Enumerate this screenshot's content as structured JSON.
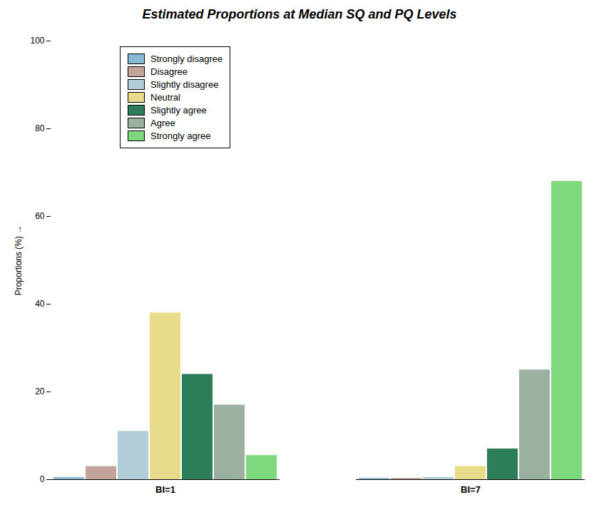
{
  "chart_data": {
    "type": "bar",
    "title": "Estimated Proportions at Median SQ and PQ Levels",
    "ylabel": "Proportions (%)",
    "categories": [
      "BI=1",
      "BI=7"
    ],
    "series": [
      {
        "name": "Strongly disagree",
        "color": "#87b8d4",
        "values": [
          0.5,
          0.3
        ]
      },
      {
        "name": "Disagree",
        "color": "#c4a49a",
        "values": [
          3.0,
          0.3
        ]
      },
      {
        "name": "Slightly disagree",
        "color": "#b0cdd8",
        "values": [
          11.0,
          0.5
        ]
      },
      {
        "name": "Neutral",
        "color": "#e8dc8a",
        "values": [
          38.0,
          3.0
        ]
      },
      {
        "name": "Slightly agree",
        "color": "#2e7d5a",
        "values": [
          24.0,
          7.0
        ]
      },
      {
        "name": "Agree",
        "color": "#9ab0a0",
        "values": [
          17.0,
          25.0
        ]
      },
      {
        "name": "Strongly agree",
        "color": "#7ed87e",
        "values": [
          5.5,
          68.0
        ]
      }
    ],
    "ylim": [
      0,
      100
    ],
    "yticks": [
      0,
      20,
      40,
      60,
      80,
      100
    ],
    "grid": false,
    "legend": "upper left"
  }
}
